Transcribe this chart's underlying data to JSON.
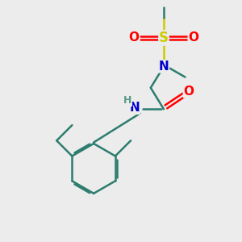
{
  "background_color": "#ececec",
  "bond_color": "#2d7d6e",
  "atom_colors": {
    "N": "#0000cc",
    "O": "#ff0000",
    "S": "#cccc00",
    "H": "#5a9a8a",
    "C": "#2d7d6e"
  },
  "figsize": [
    3.0,
    3.0
  ],
  "dpi": 100
}
